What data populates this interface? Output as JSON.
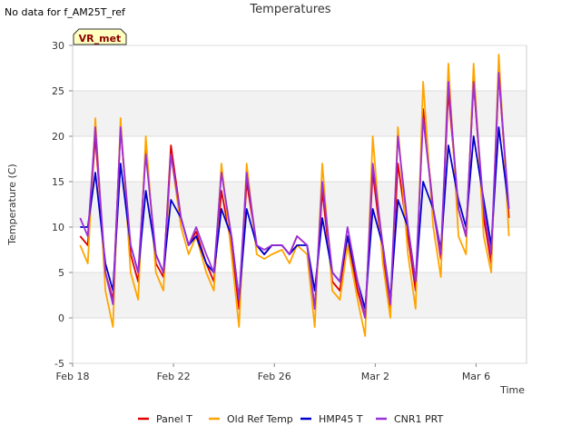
{
  "notice": "No data for f_AM25T_ref",
  "badge": "VR_met",
  "chart_data": {
    "type": "line",
    "title": "Temperatures",
    "xlabel": "Time",
    "ylabel": "Temperature (C)",
    "ylim": [
      -5,
      30
    ],
    "yticks": [
      -5,
      0,
      5,
      10,
      15,
      20,
      25,
      30
    ],
    "xticks": [
      {
        "day": 0,
        "label": "Feb 18"
      },
      {
        "day": 4,
        "label": "Feb 22"
      },
      {
        "day": 8,
        "label": "Feb 26"
      },
      {
        "day": 12,
        "label": "Mar 2"
      },
      {
        "day": 16,
        "label": "Mar 6"
      }
    ],
    "xlim_days": [
      0,
      18
    ],
    "grid": true,
    "legend_position": "bottom",
    "x_unit": "days since Feb 18",
    "days": [
      0.3,
      0.6,
      0.9,
      1.3,
      1.6,
      1.9,
      2.3,
      2.6,
      2.9,
      3.3,
      3.6,
      3.9,
      4.3,
      4.6,
      4.9,
      5.3,
      5.6,
      5.9,
      6.3,
      6.6,
      6.9,
      7.3,
      7.6,
      7.9,
      8.3,
      8.6,
      8.9,
      9.3,
      9.6,
      9.9,
      10.3,
      10.6,
      10.9,
      11.3,
      11.6,
      11.9,
      12.3,
      12.6,
      12.9,
      13.3,
      13.6,
      13.9,
      14.3,
      14.6,
      14.9,
      15.3,
      15.6,
      15.9,
      16.3,
      16.6,
      16.9,
      17.3
    ],
    "series": [
      {
        "name": "Panel T",
        "color": "#e00000",
        "values": [
          9,
          8,
          20,
          5,
          2,
          21,
          7,
          4,
          19,
          6,
          4.5,
          19,
          11,
          8,
          9.5,
          6,
          4,
          14,
          8,
          1,
          15,
          8,
          7,
          8,
          8,
          7,
          9,
          8,
          1,
          14,
          4,
          3,
          9,
          3,
          0,
          16,
          7,
          1,
          17,
          9,
          3,
          23,
          12,
          6.5,
          25,
          12,
          9,
          26,
          11,
          6,
          27,
          11
        ]
      },
      {
        "name": "Old Ref Temp",
        "color": "#ffa500",
        "values": [
          8,
          6,
          22,
          3,
          -1,
          22,
          5,
          2,
          20,
          5,
          3,
          18,
          10,
          7,
          9,
          5,
          3,
          17,
          7,
          -1,
          17,
          7,
          6.5,
          7,
          7.5,
          6,
          8,
          7,
          -1,
          17,
          3,
          2,
          8,
          2,
          -2,
          20,
          6,
          0,
          21,
          7,
          1,
          26,
          10,
          4.5,
          28,
          9,
          7,
          28,
          9,
          5,
          29,
          9
        ]
      },
      {
        "name": "HMP45 T",
        "color": "#0000cc",
        "values": [
          10,
          10,
          16,
          6,
          3,
          17,
          8,
          5,
          14,
          7,
          5,
          13,
          11,
          8,
          9,
          6,
          5,
          12,
          9,
          2,
          12,
          8,
          7,
          8,
          8,
          7,
          8,
          8,
          3,
          11,
          5,
          4,
          9,
          4,
          1,
          12,
          8,
          2,
          13,
          10,
          4,
          15,
          12,
          7.5,
          19,
          13,
          10,
          20,
          13,
          8,
          21,
          12
        ]
      },
      {
        "name": "CNR1 PRT",
        "color": "#9a30d9",
        "values": [
          11,
          9,
          21,
          5,
          1.5,
          21,
          8,
          5,
          18,
          7,
          5,
          18,
          11,
          8,
          10,
          7,
          5,
          16,
          9,
          2,
          16,
          8,
          7.5,
          8,
          8,
          7,
          9,
          8,
          1,
          15,
          5,
          4,
          10,
          4,
          0,
          17,
          8,
          1.5,
          20,
          10,
          4,
          22,
          12,
          7,
          26,
          12,
          9,
          26,
          12,
          7,
          27,
          12
        ]
      }
    ]
  }
}
